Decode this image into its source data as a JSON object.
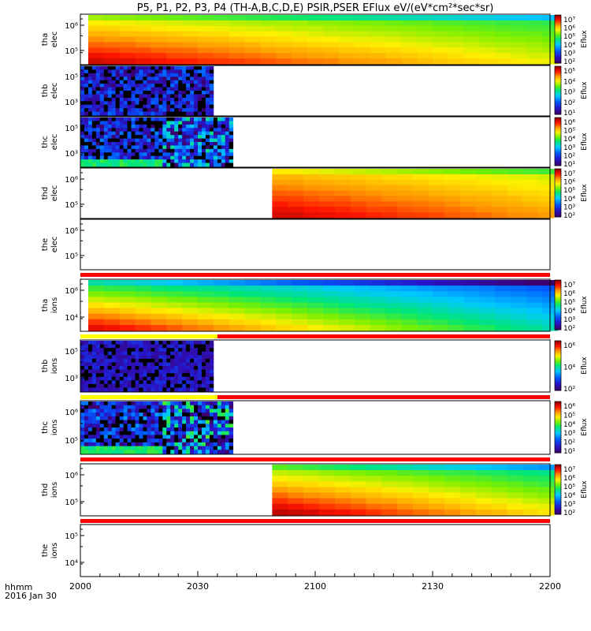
{
  "title": "P5, P1, P2, P3, P4 (TH-A,B,C,D,E) PSIR,PSER EFlux eV/(eV*cm²*sec*sr)",
  "x_label_time": "hhmm",
  "x_label_date": "2016 Jan 30",
  "colorbar_label": "Eflux",
  "chart_data": {
    "type": "heatmap",
    "x_ticks": [
      "2000",
      "2030",
      "2100",
      "2130",
      "2200"
    ],
    "x_tick_minutes": [
      0,
      30,
      60,
      90,
      120
    ],
    "x_range_minutes": [
      0,
      120
    ],
    "panels": [
      {
        "label": [
          "tha",
          "elec"
        ],
        "yticks": [
          "10⁵",
          "10⁶"
        ],
        "colorbar": [
          "10⁷",
          "10⁶",
          "10⁵",
          "10⁴",
          "10³",
          "10²"
        ],
        "colorbar_range": [
          2,
          7.4
        ],
        "data_span": [
          2,
          120
        ],
        "lo": 5.6,
        "hi": 7.1,
        "decay": 0.012,
        "pattern": "smooth",
        "flag": null
      },
      {
        "label": [
          "thb",
          "elec"
        ],
        "yticks": [
          "10³",
          "10⁵"
        ],
        "colorbar": [
          "10⁵",
          "10⁴",
          "10³",
          "10²",
          "10¹"
        ],
        "colorbar_range": [
          1,
          5.4
        ],
        "data_span": [
          0,
          34
        ],
        "lo": 1.2,
        "hi": 2.2,
        "decay": 0,
        "pattern": "noise",
        "flag": null
      },
      {
        "label": [
          "thc",
          "elec"
        ],
        "yticks": [
          "10³",
          "10⁵"
        ],
        "colorbar": [
          "10⁶",
          "10⁵",
          "10⁴",
          "10³",
          "10²",
          "10¹"
        ],
        "colorbar_range": [
          1,
          6.4
        ],
        "data_span": [
          0,
          39
        ],
        "lo": 1.3,
        "hi": 3.5,
        "decay": 0,
        "pattern": "noise2",
        "flag": null
      },
      {
        "label": [
          "thd",
          "elec"
        ],
        "yticks": [
          "10⁵",
          "10⁶"
        ],
        "colorbar": [
          "10⁷",
          "10⁶",
          "10⁵",
          "10⁴",
          "10³",
          "10²"
        ],
        "colorbar_range": [
          2,
          7.4
        ],
        "data_span": [
          49,
          120
        ],
        "lo": 6.0,
        "hi": 7.1,
        "decay": 0.012,
        "pattern": "smooth",
        "flag": null
      },
      {
        "label": [
          "the",
          "elec"
        ],
        "yticks": [
          "10⁵",
          "10⁶"
        ],
        "colorbar": [],
        "colorbar_range": [
          0,
          1
        ],
        "data_span": null,
        "lo": 0,
        "hi": 0,
        "decay": 0,
        "pattern": "none",
        "flag": "red"
      },
      {
        "label": [
          "tha",
          "ions"
        ],
        "yticks": [
          "10⁴",
          "10⁶"
        ],
        "colorbar": [
          "10⁷",
          "10⁶",
          "10⁵",
          "10⁴",
          "10³",
          "10²"
        ],
        "colorbar_range": [
          2,
          7.4
        ],
        "data_span": [
          2,
          120
        ],
        "lo": 4.7,
        "hi": 7.0,
        "decay": 0.022,
        "pattern": "smooth",
        "flag": "yellow-red"
      },
      {
        "label": [
          "thb",
          "ions"
        ],
        "yticks": [
          "10³",
          "10⁵"
        ],
        "colorbar": [
          "10⁶",
          "10⁴",
          "10²"
        ],
        "colorbar_range": [
          1.2,
          7
        ],
        "data_span": [
          0,
          34
        ],
        "lo": 1.5,
        "hi": 2.2,
        "decay": 0,
        "pattern": "noise",
        "flag": "yellow-red"
      },
      {
        "label": [
          "thc",
          "ions"
        ],
        "yticks": [
          "10⁵",
          "10⁶"
        ],
        "colorbar": [
          "10⁶",
          "10⁵",
          "10⁴",
          "10³",
          "10²",
          "10¹"
        ],
        "colorbar_range": [
          1,
          6.4
        ],
        "data_span": [
          0,
          39
        ],
        "lo": 1.3,
        "hi": 3.8,
        "decay": 0,
        "pattern": "noise2",
        "flag": "red"
      },
      {
        "label": [
          "thd",
          "ions"
        ],
        "yticks": [
          "10⁵",
          "10⁶"
        ],
        "colorbar": [
          "10⁷",
          "10⁶",
          "10⁵",
          "10⁴",
          "10³",
          "10²"
        ],
        "colorbar_range": [
          2,
          7.4
        ],
        "data_span": [
          49,
          120
        ],
        "lo": 5.3,
        "hi": 7.2,
        "decay": 0.02,
        "pattern": "smooth",
        "flag": "red"
      },
      {
        "label": [
          "the",
          "ions"
        ],
        "yticks": [
          "10⁴",
          "10⁵"
        ],
        "colorbar": [],
        "colorbar_range": [
          0,
          1
        ],
        "data_span": null,
        "lo": 0,
        "hi": 0,
        "decay": 0,
        "pattern": "none",
        "flag": null
      }
    ]
  }
}
